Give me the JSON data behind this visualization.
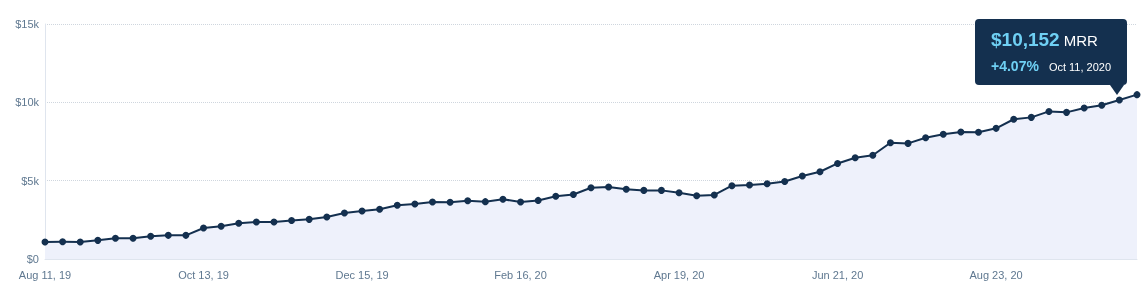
{
  "chart_data": {
    "type": "area",
    "color": "#14304f",
    "x": [
      "2019-08-11",
      "2019-08-18",
      "2019-08-25",
      "2019-09-01",
      "2019-09-08",
      "2019-09-15",
      "2019-09-22",
      "2019-09-29",
      "2019-10-06",
      "2019-10-13",
      "2019-10-20",
      "2019-10-27",
      "2019-11-03",
      "2019-11-10",
      "2019-11-17",
      "2019-11-24",
      "2019-12-01",
      "2019-12-08",
      "2019-12-15",
      "2019-12-22",
      "2019-12-29",
      "2020-01-05",
      "2020-01-12",
      "2020-01-19",
      "2020-01-26",
      "2020-02-02",
      "2020-02-09",
      "2020-02-16",
      "2020-02-23",
      "2020-03-01",
      "2020-03-08",
      "2020-03-15",
      "2020-03-22",
      "2020-03-29",
      "2020-04-05",
      "2020-04-12",
      "2020-04-19",
      "2020-04-26",
      "2020-05-03",
      "2020-05-10",
      "2020-05-17",
      "2020-05-24",
      "2020-05-31",
      "2020-06-07",
      "2020-06-14",
      "2020-06-21",
      "2020-06-28",
      "2020-07-05",
      "2020-07-12",
      "2020-07-19",
      "2020-07-26",
      "2020-08-02",
      "2020-08-09",
      "2020-08-16",
      "2020-08-23",
      "2020-08-30",
      "2020-09-06",
      "2020-09-13",
      "2020-09-20",
      "2020-09-27",
      "2020-10-04",
      "2020-10-11",
      "2020-10-18"
    ],
    "values": [
      1090,
      1100,
      1090,
      1190,
      1320,
      1320,
      1450,
      1510,
      1510,
      1980,
      2090,
      2280,
      2360,
      2360,
      2460,
      2530,
      2680,
      2940,
      3060,
      3170,
      3430,
      3510,
      3640,
      3620,
      3720,
      3660,
      3810,
      3640,
      3740,
      4000,
      4120,
      4550,
      4600,
      4450,
      4380,
      4380,
      4230,
      4040,
      4090,
      4680,
      4720,
      4800,
      4950,
      5300,
      5570,
      6100,
      6460,
      6620,
      7420,
      7380,
      7740,
      7960,
      8110,
      8090,
      8340,
      8920,
      9040,
      9420,
      9360,
      9640,
      9810,
      10152,
      10490
    ],
    "xlim": [
      "2019-08-11",
      "2020-10-18"
    ],
    "xticks": [
      {
        "value": "2019-08-11",
        "label": "Aug 11, 19"
      },
      {
        "value": "2019-10-13",
        "label": "Oct 13, 19"
      },
      {
        "value": "2019-12-15",
        "label": "Dec 15, 19"
      },
      {
        "value": "2020-02-16",
        "label": "Feb 16, 20"
      },
      {
        "value": "2020-04-19",
        "label": "Apr 19, 20"
      },
      {
        "value": "2020-06-21",
        "label": "Jun 21, 20"
      },
      {
        "value": "2020-08-23",
        "label": "Aug 23, 20"
      }
    ],
    "ylim": [
      0,
      15000
    ],
    "yticks": [
      {
        "value": 0,
        "label": "$0"
      },
      {
        "value": 5000,
        "label": "$5k"
      },
      {
        "value": 10000,
        "label": "$10k"
      },
      {
        "value": 15000,
        "label": "$15k"
      }
    ],
    "grid": "y",
    "marker": "circle",
    "line_style": "solid",
    "annotations": [
      "$10,152",
      "MRR",
      "+4.07%",
      "Oct 11, 2020"
    ]
  }
}
